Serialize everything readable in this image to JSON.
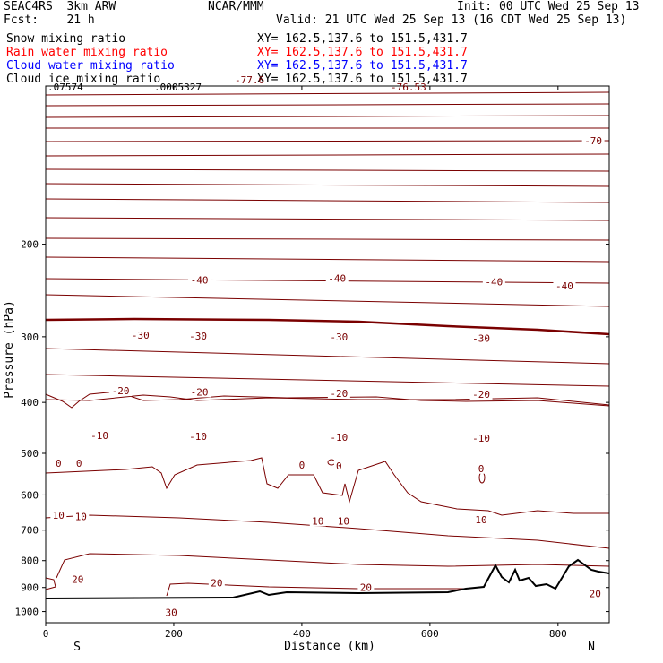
{
  "header": {
    "model": "SEAC4RS  3km ARW",
    "fcst": "Fcst:    21 h",
    "center": "NCAR/MMM",
    "init": "Init: 00 UTC Wed 25 Sep 13",
    "valid": "Valid: 21 UTC Wed 25 Sep 13 (16 CDT Wed 25 Sep 13)"
  },
  "fields": [
    {
      "label": "Snow mixing ratio",
      "xy": "XY= 162.5,137.6 to 151.5,431.7",
      "color": "#000000"
    },
    {
      "label": "Rain water mixing ratio",
      "xy": "XY= 162.5,137.6 to 151.5,431.7",
      "color": "#ff0000"
    },
    {
      "label": "Cloud water mixing ratio",
      "xy": "XY= 162.5,137.6 to 151.5,431.7",
      "color": "#0000ff"
    },
    {
      "label": "Cloud ice mixing ratio",
      "xy": "XY= 162.5,137.6 to 151.5,431.7",
      "color": "#000000"
    }
  ],
  "plot_labels": {
    "min_value": ".07574",
    "max_value": ".0005327",
    "overlap_a": "-76.53",
    "overlap_b": "-77.6"
  },
  "colors": {
    "contour": "#7a0000",
    "terrain": "#000000",
    "axis": "#000000"
  },
  "chart_data": {
    "type": "contour",
    "xlabel": "Distance (km)",
    "ylabel": "Pressure (hPa)",
    "xlim": [
      0,
      880
    ],
    "ylim": [
      1050,
      100
    ],
    "yscale": "log",
    "x_ticks": [
      0,
      200,
      400,
      600,
      800
    ],
    "y_ticks": [
      200,
      300,
      400,
      500,
      600,
      700,
      800,
      900,
      1000
    ],
    "direction_labels": {
      "left": "S",
      "right": "N"
    },
    "contour_labels": [
      {
        "value": "-70",
        "x": 855,
        "p": 127
      },
      {
        "value": "-40",
        "x": 240,
        "p": 234
      },
      {
        "value": "-40",
        "x": 455,
        "p": 232
      },
      {
        "value": "-40",
        "x": 700,
        "p": 236
      },
      {
        "value": "-40",
        "x": 810,
        "p": 240
      },
      {
        "value": "-30",
        "x": 148,
        "p": 298
      },
      {
        "value": "-30",
        "x": 238,
        "p": 299
      },
      {
        "value": "-30",
        "x": 458,
        "p": 300
      },
      {
        "value": "-30",
        "x": 680,
        "p": 302
      },
      {
        "value": "-20",
        "x": 117,
        "p": 380
      },
      {
        "value": "-20",
        "x": 240,
        "p": 382
      },
      {
        "value": "-20",
        "x": 458,
        "p": 384
      },
      {
        "value": "-20",
        "x": 680,
        "p": 386
      },
      {
        "value": "-10",
        "x": 84,
        "p": 462
      },
      {
        "value": "-10",
        "x": 238,
        "p": 464
      },
      {
        "value": "-10",
        "x": 458,
        "p": 466
      },
      {
        "value": "-10",
        "x": 680,
        "p": 468
      },
      {
        "value": "0",
        "x": 20,
        "p": 522
      },
      {
        "value": "0",
        "x": 52,
        "p": 522
      },
      {
        "value": "0",
        "x": 400,
        "p": 526
      },
      {
        "value": "0",
        "x": 458,
        "p": 528
      },
      {
        "value": "0",
        "x": 680,
        "p": 534
      },
      {
        "value": "10",
        "x": 20,
        "p": 655
      },
      {
        "value": "10",
        "x": 55,
        "p": 660
      },
      {
        "value": "10",
        "x": 425,
        "p": 672
      },
      {
        "value": "10",
        "x": 465,
        "p": 672
      },
      {
        "value": "10",
        "x": 680,
        "p": 668
      },
      {
        "value": "20",
        "x": 50,
        "p": 868
      },
      {
        "value": "20",
        "x": 267,
        "p": 882
      },
      {
        "value": "20",
        "x": 500,
        "p": 900
      },
      {
        "value": "20",
        "x": 858,
        "p": 924
      },
      {
        "value": "30",
        "x": 196,
        "p": 1004
      }
    ]
  }
}
